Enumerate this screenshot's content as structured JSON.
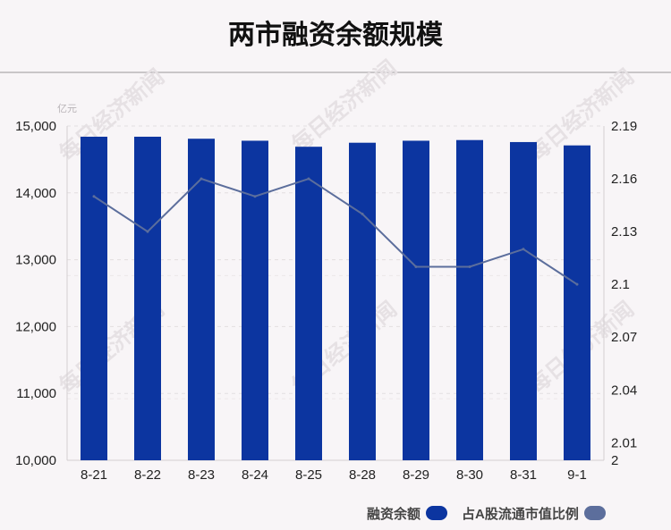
{
  "title": "两市融资余额规模",
  "chart_data": {
    "type": "bar",
    "unit_label": "亿元",
    "categories": [
      "8-21",
      "8-22",
      "8-23",
      "8-24",
      "8-25",
      "8-28",
      "8-29",
      "8-30",
      "8-31",
      "9-1"
    ],
    "series": [
      {
        "name": "融资余额",
        "type": "bar",
        "axis": "left",
        "color": "#0c35a0",
        "values": [
          14840,
          14840,
          14810,
          14780,
          14690,
          14750,
          14780,
          14790,
          14760,
          14710
        ]
      },
      {
        "name": "占A股流通市值比例",
        "type": "line",
        "axis": "right",
        "color": "#5c6e9c",
        "values": [
          2.15,
          2.13,
          2.16,
          2.15,
          2.16,
          2.14,
          2.11,
          2.11,
          2.12,
          2.1
        ]
      }
    ],
    "y_left": {
      "range": [
        10000,
        15000
      ],
      "ticks": [
        "10,000",
        "11,000",
        "12,000",
        "13,000",
        "14,000",
        "15,000"
      ]
    },
    "y_right": {
      "range": [
        2.0,
        2.19
      ],
      "ticks": [
        {
          "value": 2.0,
          "label": "2"
        },
        {
          "value": 2.01,
          "label": "2.01"
        },
        {
          "value": 2.04,
          "label": "2.04"
        },
        {
          "value": 2.07,
          "label": "2.07"
        },
        {
          "value": 2.1,
          "label": "2.1"
        },
        {
          "value": 2.13,
          "label": "2.13"
        },
        {
          "value": 2.16,
          "label": "2.16"
        },
        {
          "value": 2.19,
          "label": "2.19"
        }
      ]
    },
    "grid": true,
    "legend_position": "bottom-right"
  },
  "watermark": "每日经济新闻"
}
